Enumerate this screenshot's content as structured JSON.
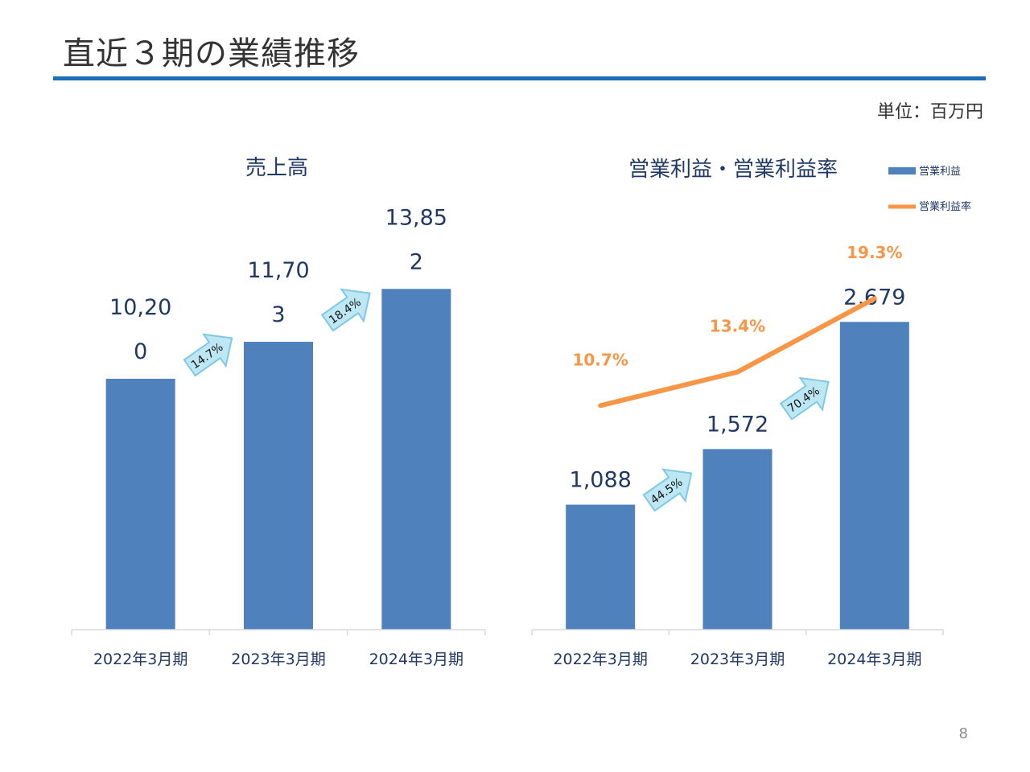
{
  "slide": {
    "title": "直近３期の業績推移",
    "unit": "単位：百万円",
    "page_number": "8"
  },
  "colors": {
    "bar": "#4f81bd",
    "line": "#f79646",
    "label": "#1f3864",
    "title_rule": "#1b6fb8",
    "growth_arrow_fill": "#bde7f3",
    "growth_arrow_stroke": "#7fc9e3"
  },
  "chart_data": [
    {
      "type": "bar",
      "title": "売上高",
      "categories": [
        "2022年3月期",
        "2023年3月期",
        "2024年3月期"
      ],
      "series": [
        {
          "values": [
            10200,
            11703,
            13852
          ],
          "value_labels": [
            "10,200",
            "11,703",
            "13,852"
          ]
        }
      ],
      "growth_labels": [
        "14.7%",
        "18.4%"
      ],
      "ylim": [
        0,
        17000
      ],
      "grid": false,
      "legend": "none"
    },
    {
      "type": "bar",
      "title": "営業利益・営業利益率",
      "categories": [
        "2022年3月期",
        "2023年3月期",
        "2024年3月期"
      ],
      "series": [
        {
          "name": "営業利益",
          "type": "bar",
          "values": [
            1088,
            1572,
            2679
          ],
          "value_labels": [
            "1,088",
            "1,572",
            "2,679"
          ]
        },
        {
          "name": "営業利益率",
          "type": "line",
          "values": [
            10.7,
            13.4,
            19.3
          ],
          "value_labels": [
            "10.7%",
            "13.4%",
            "19.3%"
          ]
        }
      ],
      "growth_labels": [
        "44.5%",
        "70.4%"
      ],
      "ylim": [
        0,
        3500
      ],
      "y2lim": [
        0,
        25
      ],
      "grid": false,
      "legend": "top-right"
    }
  ]
}
